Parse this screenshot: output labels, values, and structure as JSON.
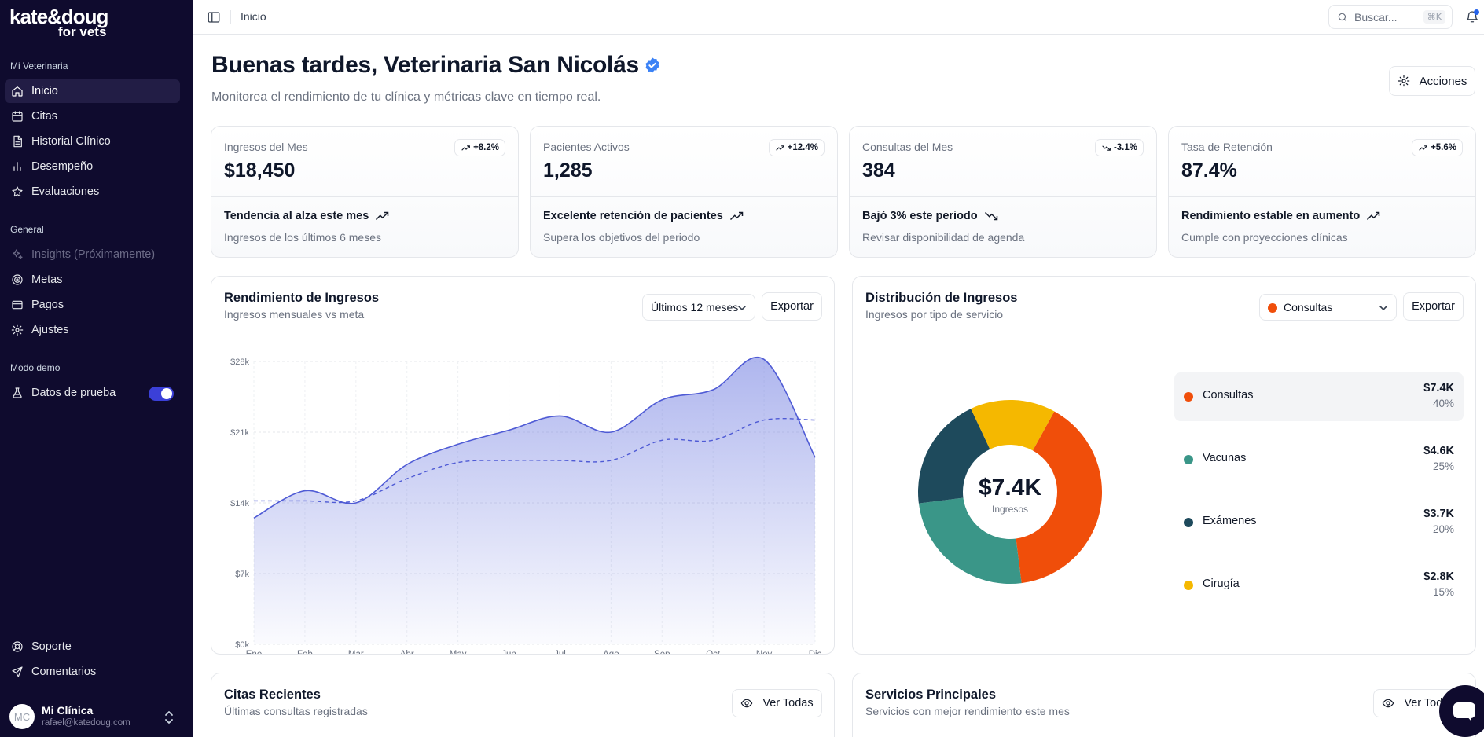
{
  "brand": {
    "line1": "kate&doug",
    "line2": "for vets"
  },
  "sidebar": {
    "section_main": "Mi Veterinaria",
    "main_items": [
      {
        "label": "Inicio",
        "icon": "home-icon"
      },
      {
        "label": "Citas",
        "icon": "calendar-icon"
      },
      {
        "label": "Historial Clínico",
        "icon": "file-icon"
      },
      {
        "label": "Desempeño",
        "icon": "bar-chart-icon"
      },
      {
        "label": "Evaluaciones",
        "icon": "star-icon"
      }
    ],
    "section_general": "General",
    "general_items": [
      {
        "label": "Insights (Próximamente)",
        "icon": "sparkles-icon"
      },
      {
        "label": "Metas",
        "icon": "target-icon"
      },
      {
        "label": "Pagos",
        "icon": "credit-card-icon"
      },
      {
        "label": "Ajustes",
        "icon": "gear-icon"
      }
    ],
    "section_demo": "Modo demo",
    "demo_item": {
      "label": "Datos de prueba",
      "icon": "flask-icon",
      "enabled": true
    },
    "footer_items": [
      {
        "label": "Soporte",
        "icon": "lifebuoy-icon"
      },
      {
        "label": "Comentarios",
        "icon": "send-icon"
      }
    ],
    "user": {
      "initials": "MC",
      "name": "Mi Clínica",
      "email": "rafael@katedoug.com"
    }
  },
  "topbar": {
    "breadcrumb": "Inicio",
    "search_placeholder": "Buscar...",
    "search_shortcut": "⌘K"
  },
  "header": {
    "title": "Buenas tardes, Veterinaria San Nicolás",
    "subtitle": "Monitorea el rendimiento de tu clínica y métricas clave en tiempo real.",
    "actions_label": "Acciones"
  },
  "stats": [
    {
      "label": "Ingresos del Mes",
      "value": "$18,450",
      "change": "+8.2%",
      "direction": "up",
      "trend": "Tendencia al alza este mes",
      "desc": "Ingresos de los últimos 6 meses"
    },
    {
      "label": "Pacientes Activos",
      "value": "1,285",
      "change": "+12.4%",
      "direction": "up",
      "trend": "Excelente retención de pacientes",
      "desc": "Supera los objetivos del periodo"
    },
    {
      "label": "Consultas del Mes",
      "value": "384",
      "change": "-3.1%",
      "direction": "down",
      "trend": "Bajó 3% este periodo",
      "desc": "Revisar disponibilidad de agenda"
    },
    {
      "label": "Tasa de Retención",
      "value": "87.4%",
      "change": "+5.6%",
      "direction": "up",
      "trend": "Rendimiento estable en aumento",
      "desc": "Cumple con proyecciones clínicas"
    }
  ],
  "revenue_card": {
    "title": "Rendimiento de Ingresos",
    "subtitle": "Ingresos mensuales vs meta",
    "range_select": "Últimos 12 meses",
    "export_label": "Exportar"
  },
  "distribution_card": {
    "title": "Distribución de Ingresos",
    "subtitle": "Ingresos por tipo de servicio",
    "filter_select": "Consultas",
    "export_label": "Exportar",
    "center_value": "$7.4K",
    "center_label": "Ingresos"
  },
  "recent_card": {
    "title": "Citas Recientes",
    "subtitle": "Últimas consultas registradas",
    "view_all": "Ver Todas"
  },
  "services_card": {
    "title": "Servicios Principales",
    "subtitle": "Servicios con mejor rendimiento este mes",
    "view_all": "Ver Todas"
  },
  "chart_data": [
    {
      "type": "area",
      "categories": [
        "Ene",
        "Feb",
        "Mar",
        "Abr",
        "May",
        "Jun",
        "Jul",
        "Ago",
        "Sep",
        "Oct",
        "Nov",
        "Dic"
      ],
      "series": [
        {
          "values": [
            12500,
            15200,
            14000,
            17800,
            19800,
            21200,
            22600,
            21000,
            24200,
            25200,
            28200,
            18500
          ],
          "color": "#4f5bd5"
        },
        {
          "values": [
            14200,
            14200,
            14200,
            16400,
            18000,
            18200,
            18200,
            18200,
            20200,
            20200,
            22200,
            22200
          ],
          "color": "#4f5bd5",
          "style": "dashed"
        }
      ],
      "ylim": [
        0,
        28000
      ],
      "yticks": [
        "$0k",
        "$7k",
        "$14k",
        "$21k",
        "$28k"
      ],
      "ytick_values": [
        0,
        7000,
        14000,
        21000,
        28000
      ],
      "grid": true
    },
    {
      "type": "pie",
      "categories": [
        "Consultas",
        "Vacunas",
        "Exámenes",
        "Cirugía"
      ],
      "amounts": [
        "$7.4K",
        "$4.6K",
        "$3.7K",
        "$2.8K"
      ],
      "values": [
        40,
        25,
        20,
        15
      ],
      "colors": [
        "#f04e0a",
        "#3a9688",
        "#1e4a5c",
        "#f5b800"
      ]
    }
  ]
}
